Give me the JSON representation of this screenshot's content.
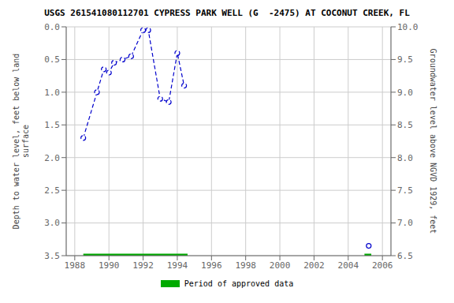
{
  "chart_data": {
    "type": "line",
    "title": "USGS 261541080112701 CYPRESS PARK WELL (G  -2475) AT COCONUT CREEK, FL",
    "xlim": [
      1987.5,
      2006.5
    ],
    "xticks": [
      1988,
      1990,
      1992,
      1994,
      1996,
      1998,
      2000,
      2002,
      2004,
      2006
    ],
    "ylabel": "Depth to water level, feet below land\nsurface",
    "ylim": [
      3.5,
      0.0
    ],
    "yticks": [
      {
        "value": 0.0,
        "label": "0.0"
      },
      0.5,
      {
        "value": 1.0,
        "label": "1.0"
      },
      1.5,
      {
        "value": 2.0,
        "label": "2.0"
      },
      2.5,
      {
        "value": 3.0,
        "label": "3.0"
      },
      3.5
    ],
    "y2label": "Groundwater level above NGVD 1929, feet",
    "y2lim": [
      6.5,
      10.0
    ],
    "y2ticks": [
      6.5,
      {
        "value": 7.0,
        "label": "7.0"
      },
      7.5,
      {
        "value": 8.0,
        "label": "8.0"
      },
      8.5,
      {
        "value": 9.0,
        "label": "9.0"
      },
      9.5,
      {
        "value": 10.0,
        "label": "10.0"
      }
    ],
    "grid": true,
    "series": [
      {
        "x": [
          1988.5,
          1989.3,
          1989.7,
          1990.0,
          1990.3,
          1990.8,
          1991.3,
          1992.0,
          1992.3,
          1993.0,
          1993.5,
          1994.0,
          1994.4
        ],
        "values": [
          1.7,
          1.0,
          0.65,
          0.7,
          0.55,
          0.5,
          0.45,
          0.05,
          0.05,
          1.1,
          1.15,
          0.4,
          0.9
        ],
        "color": "#0000CC",
        "line_style": "dashed",
        "marker": "circle"
      },
      {
        "x": [
          2005.2
        ],
        "values": [
          3.35
        ],
        "color": "#0000CC",
        "line_style": "none",
        "marker": "circle"
      }
    ],
    "approved_periods": {
      "name": "Period of approved data",
      "color": "#00AA00",
      "y": 3.5,
      "ranges": [
        [
          1988.5,
          1994.6
        ],
        [
          2004.95,
          2005.35
        ]
      ]
    }
  }
}
